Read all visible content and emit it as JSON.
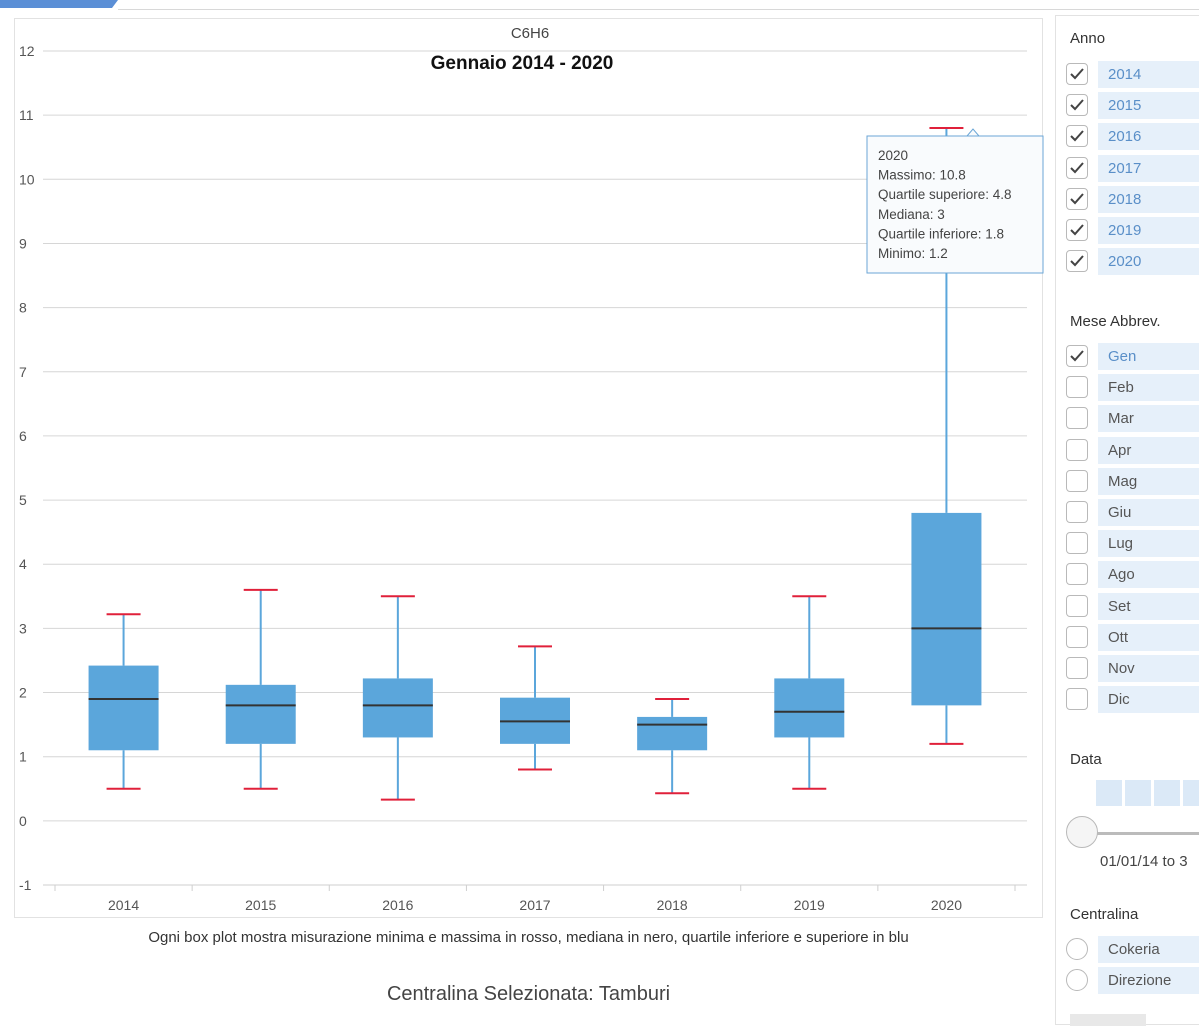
{
  "colors": {
    "box_fill": "#5ba6db",
    "whisker": "#5ba6db",
    "minmax_cap": "#e0203a",
    "median": "#333333",
    "tab_accent": "#5b8fd6",
    "selection_fill": "#e6f0fa"
  },
  "chart_data": {
    "type": "boxplot",
    "title": "Gennaio 2014 - 2020",
    "supertitle": "C6H6",
    "xlabel": "",
    "ylabel": "",
    "ylim": [
      -1,
      12
    ],
    "yticks": [
      -1,
      0,
      1,
      2,
      3,
      4,
      5,
      6,
      7,
      8,
      9,
      10,
      11,
      12
    ],
    "grid": true,
    "categories": [
      "2014",
      "2015",
      "2016",
      "2017",
      "2018",
      "2019",
      "2020"
    ],
    "series": [
      {
        "min": [
          0.5,
          0.5,
          0.33,
          0.8,
          0.43,
          0.5,
          1.2
        ],
        "q1": [
          1.1,
          1.2,
          1.3,
          1.2,
          1.1,
          1.3,
          1.8
        ],
        "median": [
          1.9,
          1.8,
          1.8,
          1.55,
          1.5,
          1.7,
          3.0
        ],
        "q3": [
          2.42,
          2.12,
          2.22,
          1.92,
          1.62,
          2.22,
          4.8
        ],
        "max": [
          3.22,
          3.6,
          3.5,
          2.72,
          1.9,
          3.5,
          10.8
        ]
      }
    ],
    "tooltip": {
      "category": "2020",
      "lines": [
        "2020",
        "Massimo: 10.8",
        "Quartile superiore: 4.8",
        "Mediana: 3",
        "Quartile inferiore: 1.8",
        "Minimo: 1.2"
      ]
    }
  },
  "caption": "Ogni box plot mostra misurazione minima e massima in rosso, mediana in nero, quartile inferiore e superiore in blu",
  "station_label": "Centralina Selezionata: Tamburi",
  "filters": {
    "anno": {
      "title": "Anno",
      "items": [
        {
          "label": "2014",
          "checked": true
        },
        {
          "label": "2015",
          "checked": true
        },
        {
          "label": "2016",
          "checked": true
        },
        {
          "label": "2017",
          "checked": true
        },
        {
          "label": "2018",
          "checked": true
        },
        {
          "label": "2019",
          "checked": true
        },
        {
          "label": "2020",
          "checked": true
        }
      ]
    },
    "mese": {
      "title": "Mese Abbrev.",
      "items": [
        {
          "label": "Gen",
          "checked": true
        },
        {
          "label": "Feb",
          "checked": false
        },
        {
          "label": "Mar",
          "checked": false
        },
        {
          "label": "Apr",
          "checked": false
        },
        {
          "label": "Mag",
          "checked": false
        },
        {
          "label": "Giu",
          "checked": false
        },
        {
          "label": "Lug",
          "checked": false
        },
        {
          "label": "Ago",
          "checked": false
        },
        {
          "label": "Set",
          "checked": false
        },
        {
          "label": "Ott",
          "checked": false
        },
        {
          "label": "Nov",
          "checked": false
        },
        {
          "label": "Dic",
          "checked": false
        }
      ]
    },
    "data": {
      "title": "Data",
      "range_text": "01/01/14 to 3"
    },
    "centralina": {
      "title": "Centralina",
      "items": [
        {
          "label": "Cokeria",
          "selected": false
        },
        {
          "label": "Direzione",
          "selected": false
        }
      ]
    }
  }
}
